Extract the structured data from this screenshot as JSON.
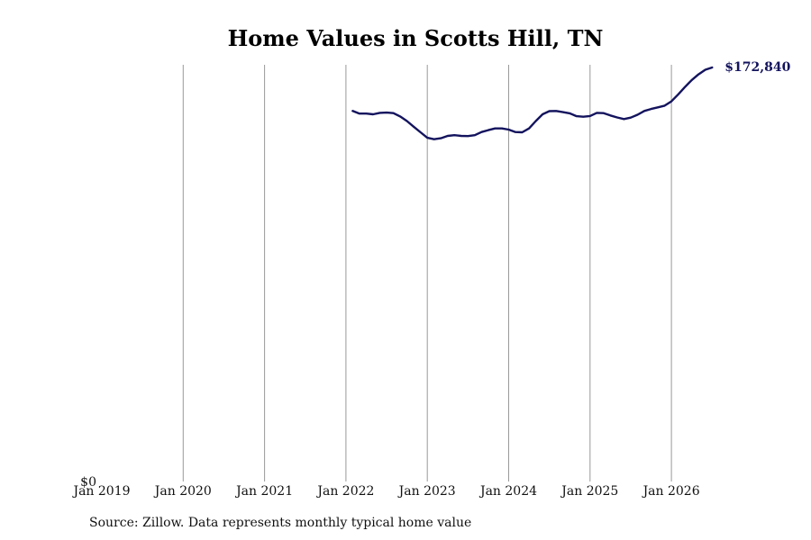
{
  "title": "Home Values in Scotts Hill, TN",
  "source": "Source: Zillow. Data represents monthly typical home value",
  "colors": {
    "line": "#13135e",
    "grid": "#999999",
    "text": "#111111"
  },
  "chart_data": {
    "type": "line",
    "title": "Home Values in Scotts Hill, TN",
    "xlabel": "",
    "ylabel": "",
    "x_tick_labels": [
      "Jan 2019",
      "Jan 2020",
      "Jan 2021",
      "Jan 2022",
      "Jan 2023",
      "Jan 2024",
      "Jan 2025",
      "Jan 2026"
    ],
    "y_tick_labels": [
      "$0"
    ],
    "xlim": [
      "2019-01",
      "2026-07"
    ],
    "ylim": [
      0,
      172840
    ],
    "grid": "vertical",
    "end_label": "$172,840",
    "series": [
      {
        "x": [
          "2022-02",
          "2022-03",
          "2022-04",
          "2022-05",
          "2022-06",
          "2022-07",
          "2022-08",
          "2022-09",
          "2022-10",
          "2022-11",
          "2022-12",
          "2023-01",
          "2023-02",
          "2023-03",
          "2023-04",
          "2023-05",
          "2023-06",
          "2023-07",
          "2023-08",
          "2023-09",
          "2023-10",
          "2023-11",
          "2023-12",
          "2024-01",
          "2024-02",
          "2024-03",
          "2024-04",
          "2024-05",
          "2024-06",
          "2024-07",
          "2024-08",
          "2024-09",
          "2024-10",
          "2024-11",
          "2024-12",
          "2025-01",
          "2025-02",
          "2025-03",
          "2025-04",
          "2025-05",
          "2025-06",
          "2025-07",
          "2025-08",
          "2025-09",
          "2025-10",
          "2025-11",
          "2025-12",
          "2026-01",
          "2026-02",
          "2026-03",
          "2026-04",
          "2026-05",
          "2026-06",
          "2026-07"
        ],
        "values": [
          154700,
          153600,
          153600,
          153300,
          153900,
          154000,
          153800,
          152400,
          150500,
          148100,
          145800,
          143500,
          142900,
          143300,
          144300,
          144600,
          144300,
          144200,
          144600,
          145900,
          146700,
          147400,
          147400,
          146900,
          145900,
          145800,
          147400,
          150500,
          153300,
          154600,
          154700,
          154200,
          153700,
          152500,
          152300,
          152600,
          153900,
          153800,
          152800,
          152000,
          151300,
          151900,
          153100,
          154700,
          155500,
          156200,
          156900,
          158700,
          161600,
          164700,
          167600,
          170000,
          171900,
          172840
        ]
      }
    ]
  }
}
